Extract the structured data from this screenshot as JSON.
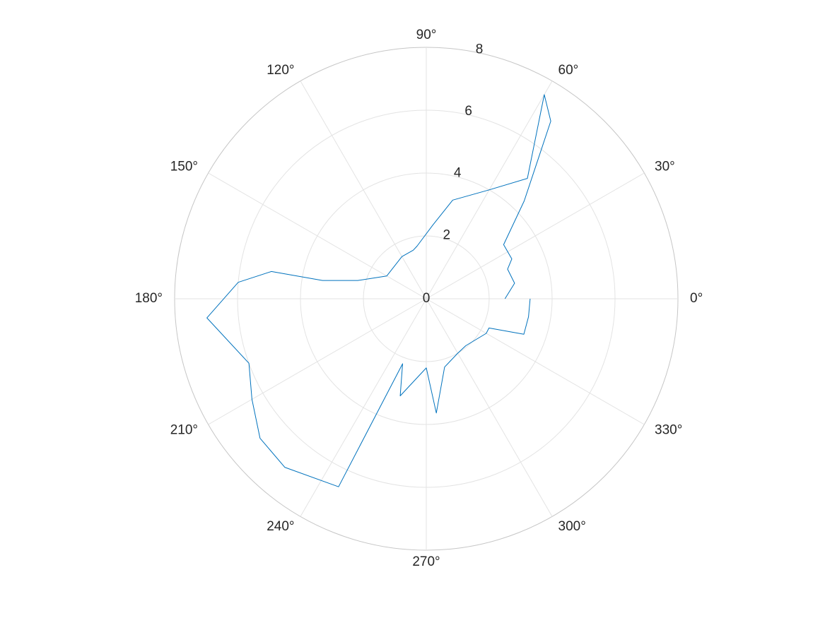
{
  "chart_data": {
    "type": "line",
    "coordinate_system": "polar",
    "title": "",
    "theta_unit": "degrees",
    "theta_direction": "counterclockwise",
    "theta_zero_location": "right",
    "theta_tick_labels": [
      "0°",
      "30°",
      "60°",
      "90°",
      "120°",
      "150°",
      "180°",
      "210°",
      "240°",
      "270°",
      "300°",
      "330°"
    ],
    "r_ticks": [
      0,
      2,
      4,
      6,
      8
    ],
    "r_tick_labels": [
      "0",
      "2",
      "4",
      "6",
      "8"
    ],
    "rlim": [
      0,
      8
    ],
    "grid": true,
    "series_color": "#0072bd",
    "series": [
      {
        "points": [
          {
            "theta": 0,
            "r": 2.5
          },
          {
            "theta": 10,
            "r": 2.85
          },
          {
            "theta": 20,
            "r": 2.75
          },
          {
            "theta": 25,
            "r": 3.0
          },
          {
            "theta": 35,
            "r": 3.0
          },
          {
            "theta": 45,
            "r": 4.4
          },
          {
            "theta": 55,
            "r": 6.9
          },
          {
            "theta": 60,
            "r": 7.5
          },
          {
            "theta": 50,
            "r": 5.0
          },
          {
            "theta": 60,
            "r": 4.0
          },
          {
            "theta": 75,
            "r": 3.25
          },
          {
            "theta": 85,
            "r": 2.35
          },
          {
            "theta": 100,
            "r": 1.7
          },
          {
            "theta": 105,
            "r": 1.6
          },
          {
            "theta": 120,
            "r": 1.55
          },
          {
            "theta": 150,
            "r": 1.45
          },
          {
            "theta": 165,
            "r": 2.25
          },
          {
            "theta": 170,
            "r": 3.35
          },
          {
            "theta": 170,
            "r": 5.0
          },
          {
            "theta": 175,
            "r": 6.0
          },
          {
            "theta": 185,
            "r": 7.0
          },
          {
            "theta": 200,
            "r": 6.0
          },
          {
            "theta": 210,
            "r": 6.4
          },
          {
            "theta": 220,
            "r": 6.9
          },
          {
            "theta": 230,
            "r": 7.0
          },
          {
            "theta": 245,
            "r": 6.6
          },
          {
            "theta": 250,
            "r": 2.2
          },
          {
            "theta": 255,
            "r": 3.2
          },
          {
            "theta": 270,
            "r": 2.2
          },
          {
            "theta": 275,
            "r": 3.65
          },
          {
            "theta": 285,
            "r": 2.25
          },
          {
            "theta": 300,
            "r": 2.0
          },
          {
            "theta": 310,
            "r": 1.95
          },
          {
            "theta": 330,
            "r": 2.2
          },
          {
            "theta": 335,
            "r": 2.2
          },
          {
            "theta": 340,
            "r": 3.3
          },
          {
            "theta": 350,
            "r": 3.3
          },
          {
            "theta": 0,
            "r": 3.3
          }
        ]
      }
    ]
  }
}
